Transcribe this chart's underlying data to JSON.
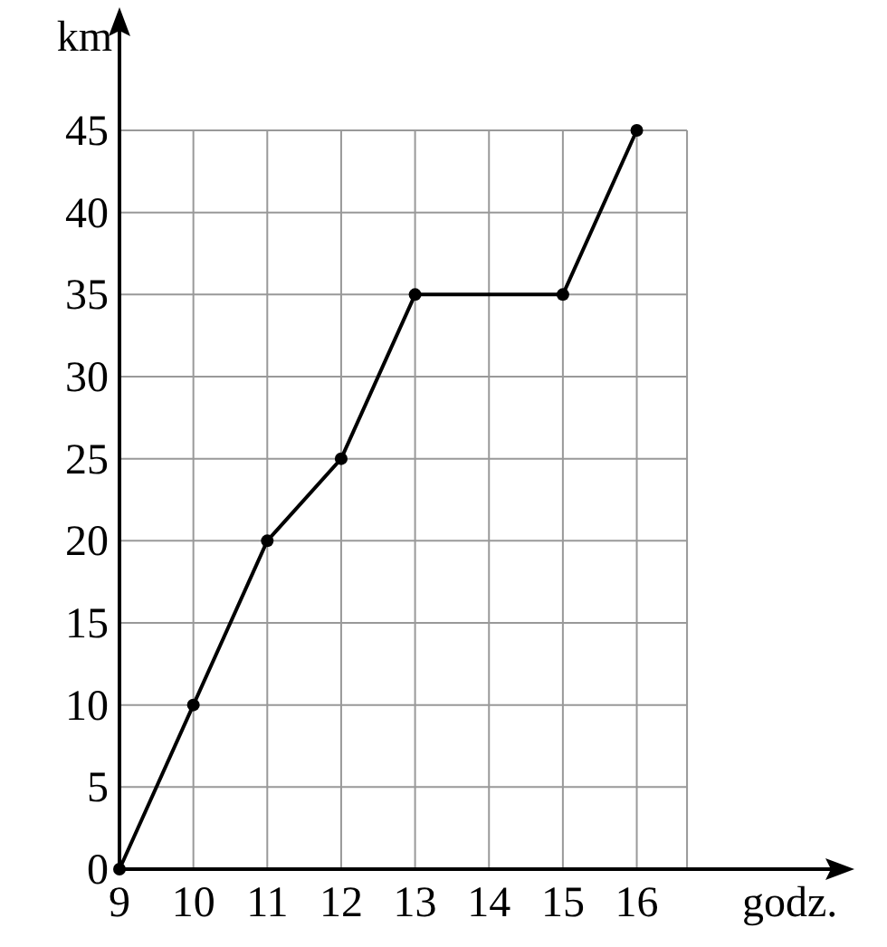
{
  "chart_data": {
    "type": "line",
    "xlabel": "godz.",
    "ylabel": "km",
    "x": [
      9,
      10,
      11,
      12,
      13,
      15,
      16
    ],
    "series": [
      {
        "color": "#000000",
        "values": [
          0,
          10,
          20,
          25,
          35,
          35,
          45
        ]
      }
    ],
    "xlim": [
      9,
      18.7
    ],
    "xticks": [
      9,
      10,
      11,
      12,
      13,
      14,
      15,
      16
    ],
    "ylim": [
      0,
      45
    ],
    "yticks": [
      0,
      5,
      10,
      15,
      20,
      25,
      30,
      35,
      40,
      45
    ],
    "grid": true,
    "marker": "circle",
    "line_style": "solid"
  }
}
